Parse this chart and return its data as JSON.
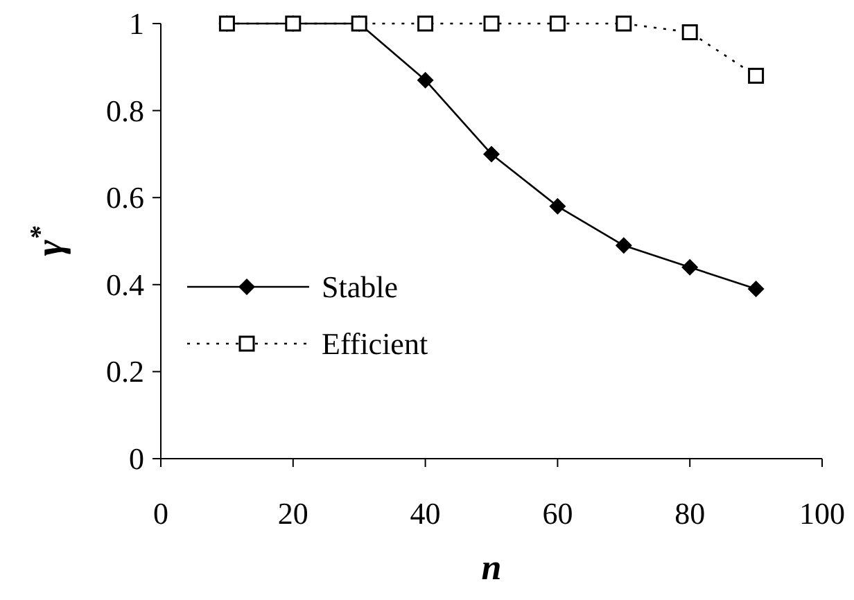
{
  "chart_data": {
    "type": "line",
    "xlabel": "n",
    "ylabel": "γ$^{*}$",
    "x": [
      10,
      20,
      30,
      40,
      50,
      60,
      70,
      80,
      90
    ],
    "series": [
      {
        "name": "Stable",
        "color": "#000000",
        "marker": "diamond",
        "line_style": "solid",
        "values": [
          1,
          1,
          1,
          0.87,
          0.7,
          0.58,
          0.49,
          0.44,
          0.39
        ]
      },
      {
        "name": "Efficient",
        "color": "#000000",
        "marker": "square",
        "line_style": "dotted",
        "values": [
          1,
          1,
          1,
          1,
          1,
          1,
          1,
          0.98,
          0.88
        ]
      }
    ],
    "xlim": [
      0,
      100
    ],
    "xticks": [
      0,
      20,
      40,
      60,
      80,
      100
    ],
    "ylim": [
      0,
      1
    ],
    "yticks": [
      0,
      0.2,
      0.4,
      0.6,
      0.8,
      1
    ],
    "grid": false,
    "legend": "left"
  }
}
